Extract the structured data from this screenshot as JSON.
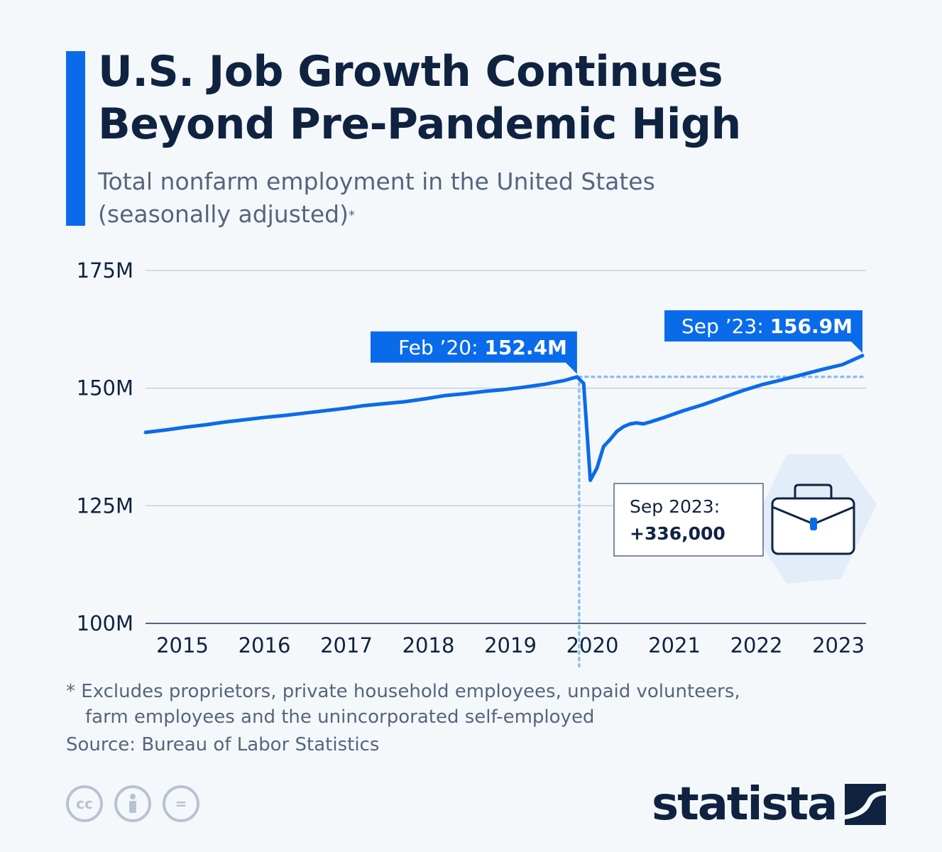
{
  "header": {
    "title_line1": "U.S. Job Growth Continues",
    "title_line2": "Beyond Pre-Pandemic High",
    "subtitle_line1": "Total nonfarm employment in the United States",
    "subtitle_line2": "(seasonally adjusted)",
    "subtitle_marker": "*"
  },
  "chart_data": {
    "type": "line",
    "title": "U.S. Job Growth Continues Beyond Pre-Pandemic High",
    "subtitle": "Total nonfarm employment in the United States (seasonally adjusted)*",
    "xlabel": "",
    "ylabel": "",
    "ylim": [
      100,
      175
    ],
    "y_ticks": [
      {
        "value": 100,
        "label": "100M"
      },
      {
        "value": 125,
        "label": "125M"
      },
      {
        "value": 150,
        "label": "150M"
      },
      {
        "value": 175,
        "label": "175M"
      }
    ],
    "x_ticks": [
      "2015",
      "2016",
      "2017",
      "2018",
      "2019",
      "2020",
      "2021",
      "2022",
      "2023"
    ],
    "grid": true,
    "line_color": "#0a6bea",
    "series": [
      {
        "values": [
          {
            "x": "2014-09",
            "y": 140.6
          },
          {
            "x": "2014-12",
            "y": 141.1
          },
          {
            "x": "2015-03",
            "y": 141.7
          },
          {
            "x": "2015-06",
            "y": 142.2
          },
          {
            "x": "2015-09",
            "y": 142.8
          },
          {
            "x": "2015-12",
            "y": 143.3
          },
          {
            "x": "2016-03",
            "y": 143.8
          },
          {
            "x": "2016-06",
            "y": 144.2
          },
          {
            "x": "2016-09",
            "y": 144.7
          },
          {
            "x": "2016-12",
            "y": 145.2
          },
          {
            "x": "2017-03",
            "y": 145.7
          },
          {
            "x": "2017-06",
            "y": 146.3
          },
          {
            "x": "2017-09",
            "y": 146.7
          },
          {
            "x": "2017-12",
            "y": 147.1
          },
          {
            "x": "2018-03",
            "y": 147.7
          },
          {
            "x": "2018-06",
            "y": 148.4
          },
          {
            "x": "2018-09",
            "y": 148.8
          },
          {
            "x": "2018-12",
            "y": 149.3
          },
          {
            "x": "2019-03",
            "y": 149.7
          },
          {
            "x": "2019-06",
            "y": 150.2
          },
          {
            "x": "2019-09",
            "y": 150.8
          },
          {
            "x": "2019-12",
            "y": 151.6
          },
          {
            "x": "2020-02",
            "y": 152.4
          },
          {
            "x": "2020-03",
            "y": 151.0
          },
          {
            "x": "2020-04",
            "y": 130.4
          },
          {
            "x": "2020-05",
            "y": 133.0
          },
          {
            "x": "2020-06",
            "y": 137.6
          },
          {
            "x": "2020-07",
            "y": 139.1
          },
          {
            "x": "2020-08",
            "y": 140.8
          },
          {
            "x": "2020-09",
            "y": 141.8
          },
          {
            "x": "2020-10",
            "y": 142.4
          },
          {
            "x": "2020-11",
            "y": 142.6
          },
          {
            "x": "2020-12",
            "y": 142.4
          },
          {
            "x": "2021-01",
            "y": 142.8
          },
          {
            "x": "2021-03",
            "y": 143.7
          },
          {
            "x": "2021-06",
            "y": 145.2
          },
          {
            "x": "2021-09",
            "y": 146.5
          },
          {
            "x": "2021-12",
            "y": 148.0
          },
          {
            "x": "2022-03",
            "y": 149.5
          },
          {
            "x": "2022-06",
            "y": 150.8
          },
          {
            "x": "2022-09",
            "y": 151.8
          },
          {
            "x": "2022-12",
            "y": 152.9
          },
          {
            "x": "2023-03",
            "y": 154.0
          },
          {
            "x": "2023-06",
            "y": 155.0
          },
          {
            "x": "2023-09",
            "y": 156.9
          }
        ]
      }
    ],
    "reference_level": 152.4,
    "reference_date": "2020-02",
    "annotations": [
      {
        "prefix": "Feb ’20: ",
        "value": "152.4M",
        "x": "2020-02",
        "y": 152.4
      },
      {
        "prefix": "Sep ’23: ",
        "value": "156.9M",
        "x": "2023-09",
        "y": 156.9
      }
    ],
    "callout": {
      "label": "Sep 2023:",
      "value": "+336,000"
    }
  },
  "icons": {
    "briefcase": "briefcase-icon",
    "cc": [
      "cc-icon",
      "by-icon",
      "nd-icon"
    ]
  },
  "license_icons": [
    "cc",
    "",
    "="
  ],
  "footnote": {
    "line1": "* Excludes proprietors, private household employees, unpaid volunteers,",
    "line2": "farm employees and the unincorporated self-employed"
  },
  "source": "Source: Bureau of Labor Statistics",
  "brand": {
    "name": "statista"
  }
}
